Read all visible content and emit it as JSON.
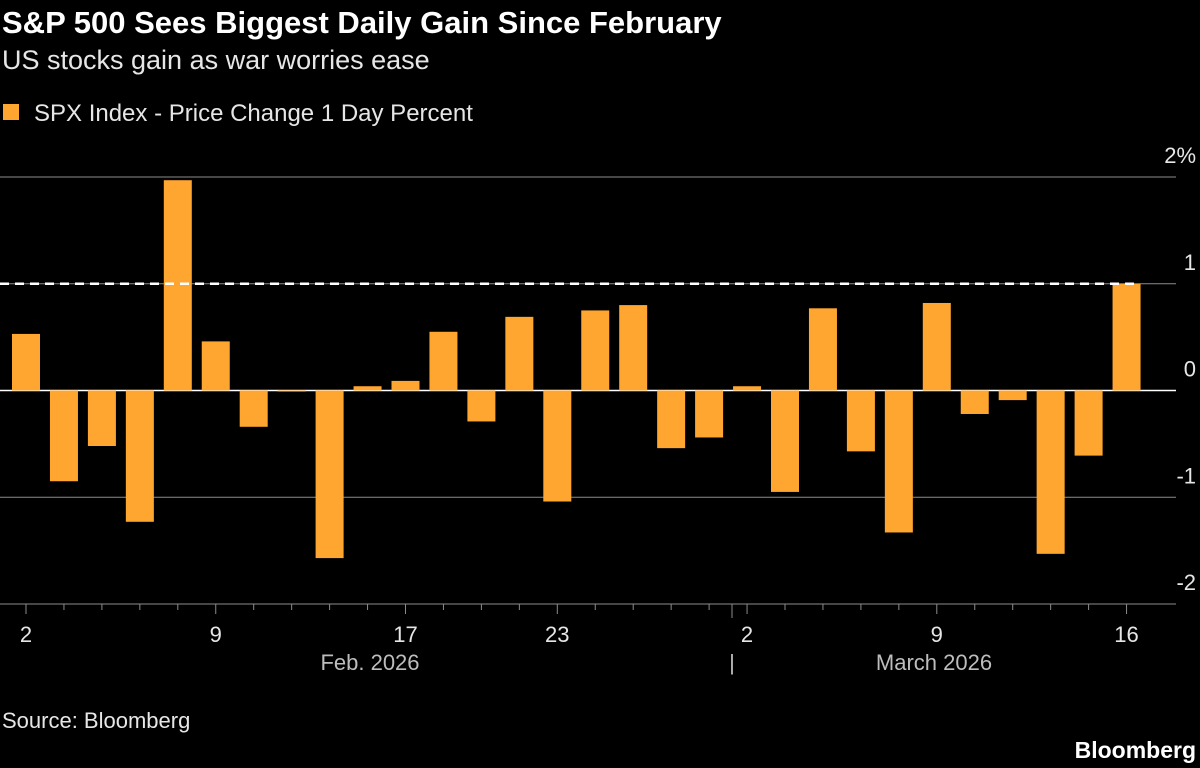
{
  "chart_data": {
    "type": "bar",
    "title": "S&P 500 Sees Biggest Daily Gain Since February",
    "subtitle": "US stocks gain as war worries ease",
    "source": "Source: Bloomberg",
    "brand": "Bloomberg",
    "month_labels": [
      "Feb. 2026",
      "|",
      "March 2026"
    ],
    "categories": [
      "2",
      null,
      null,
      null,
      null,
      "9",
      null,
      null,
      null,
      null,
      "17",
      null,
      null,
      null,
      "23",
      null,
      null,
      null,
      null,
      "2",
      null,
      null,
      null,
      null,
      "9",
      null,
      null,
      null,
      null,
      "16"
    ],
    "series": [
      {
        "name": "SPX Index - Price Change 1 Day Percent",
        "color": "#ffa630",
        "values": [
          0.53,
          -0.85,
          -0.52,
          -1.23,
          1.97,
          0.46,
          -0.34,
          -0.01,
          -1.57,
          0.04,
          0.09,
          0.55,
          -0.29,
          0.69,
          -1.04,
          0.75,
          0.8,
          -0.54,
          -0.44,
          0.04,
          -0.95,
          0.77,
          -0.57,
          -1.33,
          0.82,
          -0.22,
          -0.09,
          -1.53,
          -0.61,
          1.0
        ]
      }
    ],
    "reference_line": 1,
    "ylim": [
      -2,
      2
    ],
    "yticks": [
      {
        "value": 2,
        "label": "2%"
      },
      1,
      0,
      -1,
      -2
    ],
    "grid": true
  }
}
